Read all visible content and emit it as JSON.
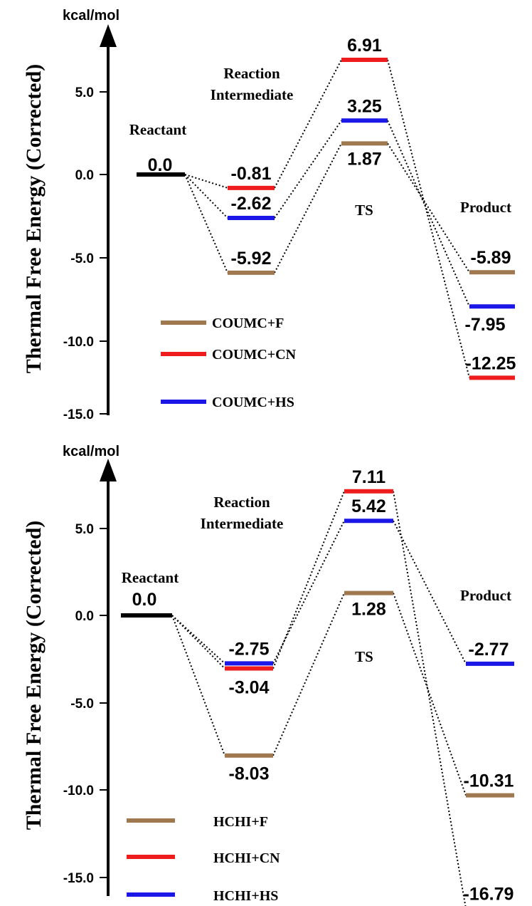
{
  "chart_data": [
    {
      "type": "line",
      "unit_label": "kcal/mol",
      "ylabel": "Thermal Free Energy (Corrected)",
      "ylim": [
        -15.0,
        8.5
      ],
      "yticks": [
        "5.0",
        "0.0",
        "-5.0",
        "-10.0",
        "-15.0"
      ],
      "stages": [
        "Reactant",
        "Reaction Intermediate",
        "TS",
        "Product"
      ],
      "reactant": {
        "value": 0.0,
        "label": "0.0"
      },
      "series": [
        {
          "name": "COUMC+F",
          "color": "#a0784f",
          "values": [
            0.0,
            -5.92,
            1.87,
            -5.89
          ],
          "labels": [
            "0.0",
            "-5.92",
            "1.87",
            "-5.89"
          ]
        },
        {
          "name": "COUMC+CN",
          "color": "#ee1c1c",
          "values": [
            0.0,
            -0.81,
            6.91,
            -12.25
          ],
          "labels": [
            "0.0",
            "-0.81",
            "6.91",
            "-12.25"
          ]
        },
        {
          "name": "COUMC+HS",
          "color": "#1b17e6",
          "values": [
            0.0,
            -2.62,
            3.25,
            -7.95
          ],
          "labels": [
            "0.0",
            "-2.62",
            "3.25",
            "-7.95"
          ]
        }
      ]
    },
    {
      "type": "line",
      "unit_label": "kcal/mol",
      "ylabel": "Thermal Free Energy (Corrected)",
      "ylim": [
        -17.0,
        8.5
      ],
      "yticks": [
        "5.0",
        "0.0",
        "-5.0",
        "-10.0",
        "-15.0"
      ],
      "stages": [
        "Reactant",
        "Reaction Intermediate",
        "TS",
        "Product"
      ],
      "reactant": {
        "value": 0.0,
        "label": "0.0"
      },
      "series": [
        {
          "name": "HCHI+F",
          "color": "#a0784f",
          "values": [
            0.0,
            -8.03,
            1.28,
            -10.31
          ],
          "labels": [
            "0.0",
            "-8.03",
            "1.28",
            "-10.31"
          ]
        },
        {
          "name": "HCHI+CN",
          "color": "#ee1c1c",
          "values": [
            0.0,
            -3.04,
            7.11,
            -16.79
          ],
          "labels": [
            "0.0",
            "-3.04",
            "7.11",
            "-16.79"
          ]
        },
        {
          "name": "HCHI+HS",
          "color": "#1b17e6",
          "values": [
            0.0,
            -2.75,
            5.42,
            -2.77
          ],
          "labels": [
            "0.0",
            "-2.75",
            "5.42",
            "-2.77"
          ]
        }
      ]
    }
  ]
}
